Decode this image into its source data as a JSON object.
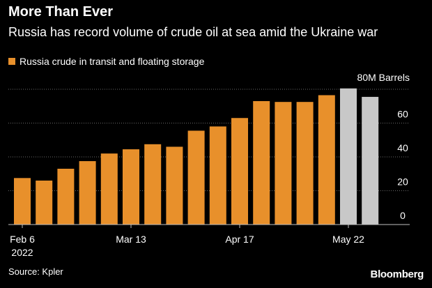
{
  "header": {
    "title": "More Than Ever",
    "subtitle": "Russia has record volume of crude oil at sea amid the Ukraine war"
  },
  "legend": {
    "label": "Russia crude in transit and floating storage",
    "color": "#E8902B"
  },
  "footer": {
    "source": "Source: Kpler",
    "brand": "Bloomberg"
  },
  "chart_data": {
    "type": "bar",
    "title": "More Than Ever",
    "subtitle": "Russia has record volume of crude oil at sea amid the Ukraine war",
    "ylabel": "80M Barrels",
    "ylim": [
      0,
      80
    ],
    "yticks": [
      0,
      20,
      40,
      60,
      80
    ],
    "ytick_labels": [
      "0",
      "20",
      "40",
      "60",
      "80M Barrels"
    ],
    "grid": true,
    "axis_side": "right",
    "series_colors": {
      "primary": "#E8902B",
      "secondary": "#C8C8C8"
    },
    "x_tick_labels": [
      {
        "index": 0,
        "line1": "Feb 6",
        "line2": "2022"
      },
      {
        "index": 5,
        "line1": "Mar 13",
        "line2": ""
      },
      {
        "index": 10,
        "line1": "Apr 17",
        "line2": ""
      },
      {
        "index": 15,
        "line1": "May 22",
        "line2": ""
      }
    ],
    "bars": [
      {
        "value": 27.5,
        "color_key": "primary"
      },
      {
        "value": 26,
        "color_key": "primary"
      },
      {
        "value": 33,
        "color_key": "primary"
      },
      {
        "value": 37.5,
        "color_key": "primary"
      },
      {
        "value": 42,
        "color_key": "primary"
      },
      {
        "value": 44.5,
        "color_key": "primary"
      },
      {
        "value": 47.5,
        "color_key": "primary"
      },
      {
        "value": 46,
        "color_key": "primary"
      },
      {
        "value": 55.5,
        "color_key": "primary"
      },
      {
        "value": 58,
        "color_key": "primary"
      },
      {
        "value": 63,
        "color_key": "primary"
      },
      {
        "value": 73,
        "color_key": "primary"
      },
      {
        "value": 72.5,
        "color_key": "primary"
      },
      {
        "value": 72.5,
        "color_key": "primary"
      },
      {
        "value": 76.5,
        "color_key": "primary"
      },
      {
        "value": 80.5,
        "color_key": "secondary"
      },
      {
        "value": 75.5,
        "color_key": "secondary"
      }
    ]
  }
}
